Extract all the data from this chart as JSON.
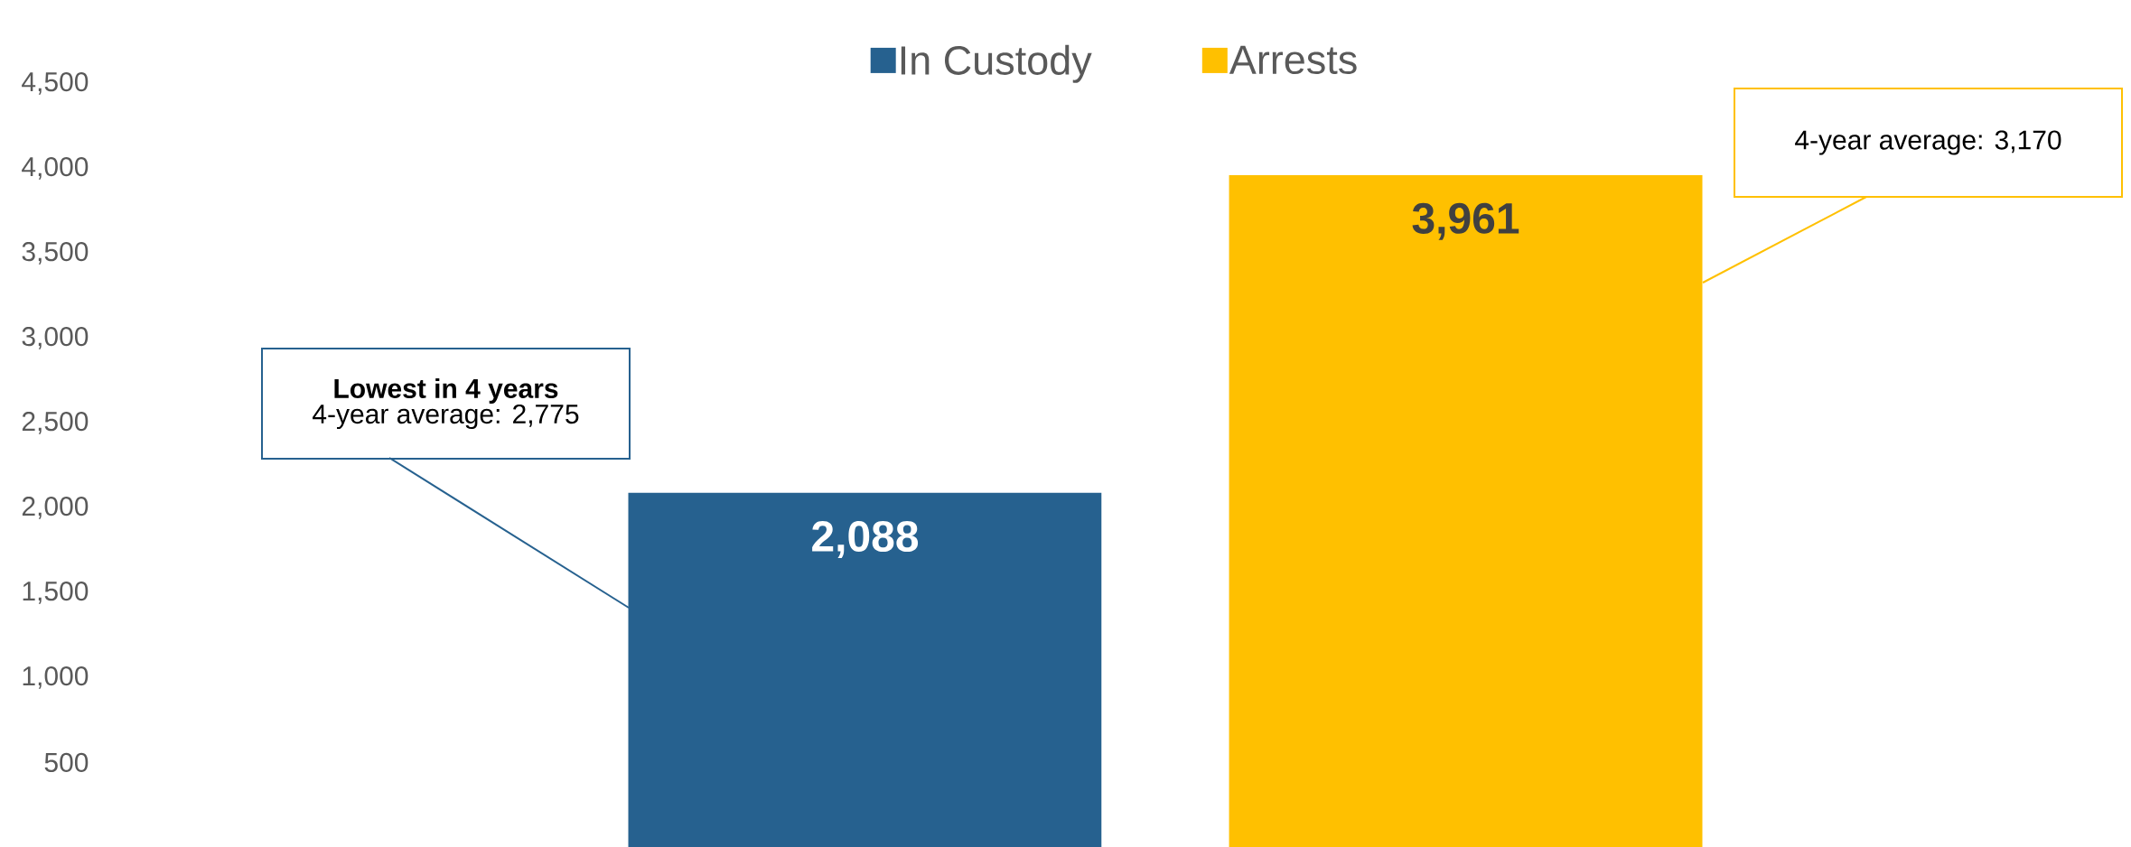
{
  "chart_data": {
    "type": "bar",
    "categories": [
      null
    ],
    "series": [
      {
        "name": "In Custody",
        "color": "#26618F",
        "values": [
          2088
        ]
      },
      {
        "name": "Arrests",
        "color": "#FFC000",
        "values": [
          3961
        ]
      }
    ],
    "ylim": [
      0,
      4500
    ],
    "yticks": [
      {
        "value": 500,
        "label": "500"
      },
      {
        "value": 1000,
        "label": "1,000"
      },
      {
        "value": 1500,
        "label": "1,500"
      },
      {
        "value": 2000,
        "label": "2,000"
      },
      {
        "value": 2500,
        "label": "2,500"
      },
      {
        "value": 3000,
        "label": "3,000"
      },
      {
        "value": 3500,
        "label": "3,500"
      },
      {
        "value": 4000,
        "label": "4,000"
      },
      {
        "value": 4500,
        "label": "4,500"
      }
    ],
    "value_labels": [
      "2,088",
      "3,961"
    ],
    "grid": false,
    "legend": "top",
    "annotations": [
      "Lowest in 4 years",
      "4-year average: 2,775",
      "4-year average: 3,170"
    ]
  }
}
